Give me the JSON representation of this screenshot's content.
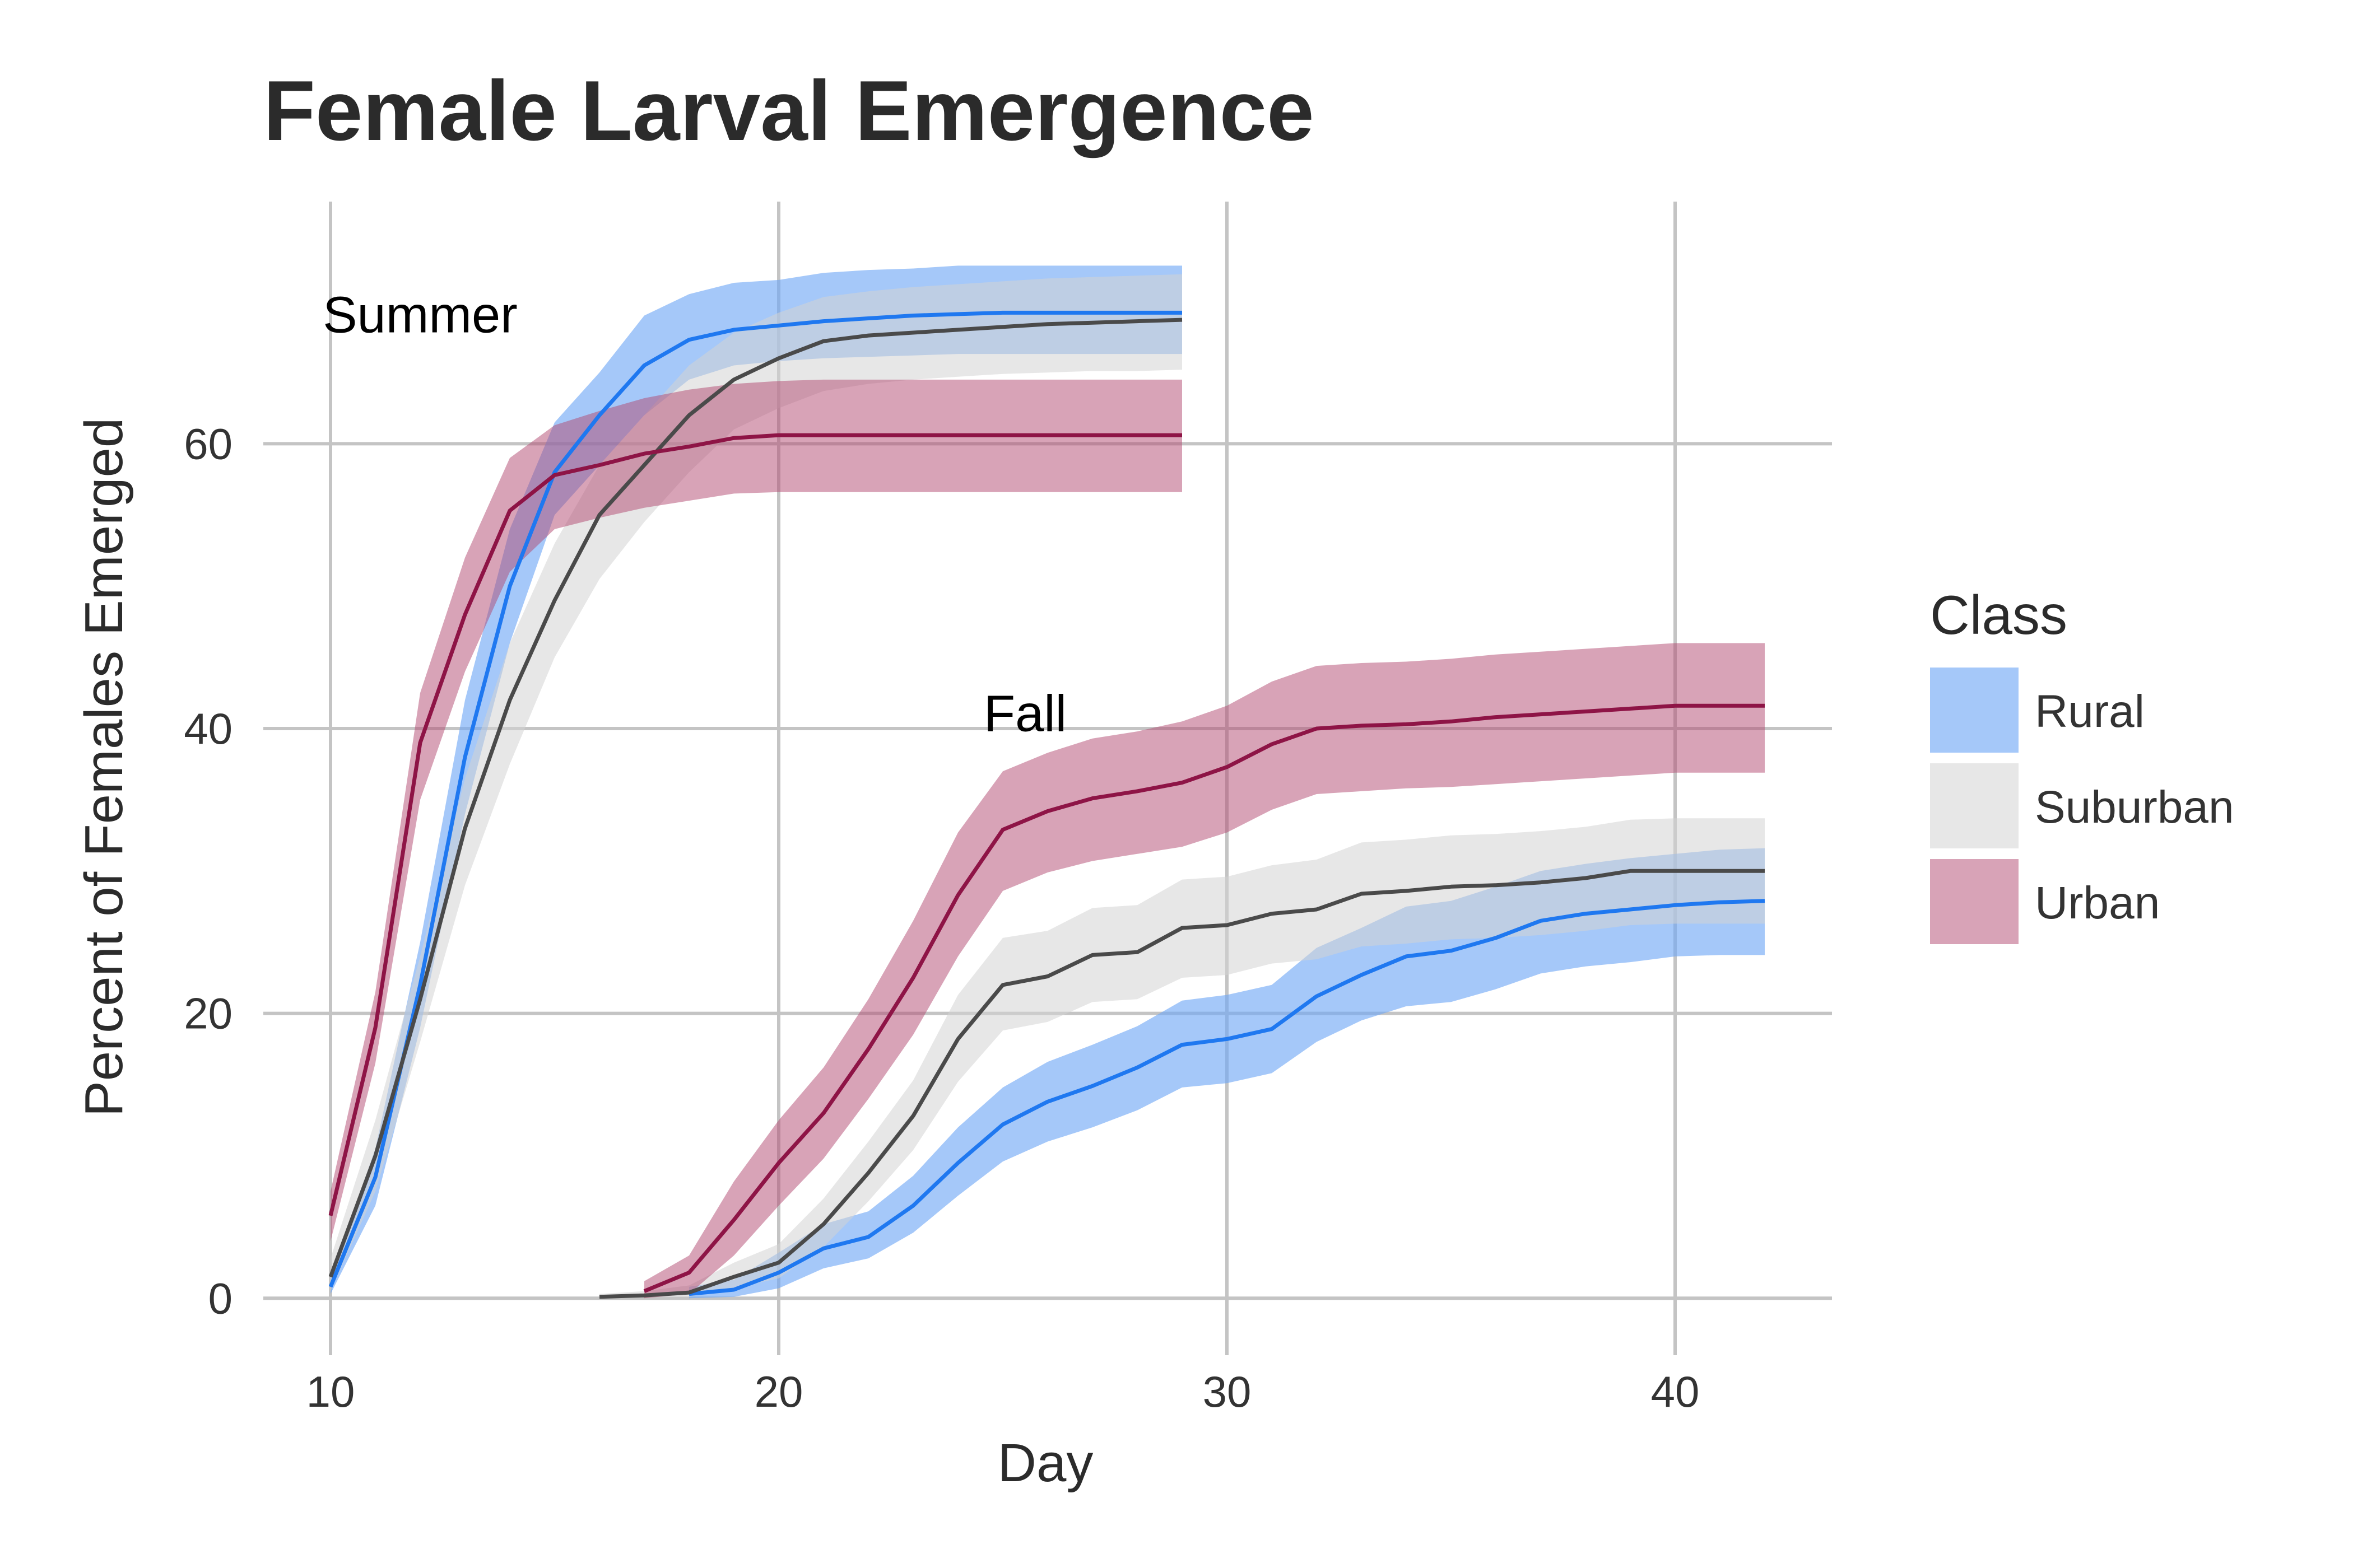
{
  "chart_data": {
    "type": "area",
    "title": "Female Larval Emergence",
    "xlabel": "Day",
    "ylabel": "Percent of Females Emerged",
    "xlim": [
      8.5,
      43.5
    ],
    "ylim": [
      -4,
      77
    ],
    "xticks": [
      10,
      20,
      30,
      40
    ],
    "yticks": [
      0,
      20,
      40,
      60
    ],
    "grid": true,
    "legend": {
      "title": "Class",
      "placement": "right"
    },
    "annotations": [
      {
        "text": "Summer",
        "x": 12,
        "y": 69
      },
      {
        "text": "Fall",
        "x": 25.5,
        "y": 41
      }
    ],
    "series": [
      {
        "name": "Rural",
        "season": "Summer",
        "line_color": "#1f78f0",
        "band_color": "#6ea6f5",
        "x": [
          10,
          11,
          12,
          13,
          14,
          15,
          16,
          17,
          18,
          19,
          20,
          21,
          22,
          23,
          24,
          25,
          26,
          27,
          28,
          29
        ],
        "y": [
          0.8,
          8.5,
          22,
          38,
          50,
          58,
          62,
          65.5,
          67.3,
          68,
          68.3,
          68.6,
          68.8,
          69,
          69.1,
          69.2,
          69.2,
          69.2,
          69.2,
          69.2
        ],
        "lower": [
          0.3,
          6.5,
          19,
          34,
          46,
          55,
          58.5,
          62,
          64.5,
          65.5,
          65.8,
          66,
          66.1,
          66.2,
          66.3,
          66.3,
          66.3,
          66.3,
          66.3,
          66.3
        ],
        "upper": [
          1.5,
          10.5,
          25,
          42,
          54,
          61.5,
          65,
          69,
          70.5,
          71.3,
          71.5,
          72,
          72.2,
          72.3,
          72.5,
          72.5,
          72.5,
          72.5,
          72.5,
          72.5
        ]
      },
      {
        "name": "Suburban",
        "season": "Summer",
        "line_color": "#4a4a4a",
        "band_color": "#d3d3d3",
        "x": [
          10,
          11,
          12,
          13,
          14,
          15,
          16,
          17,
          18,
          19,
          20,
          21,
          22,
          23,
          24,
          25,
          26,
          27,
          28,
          29
        ],
        "y": [
          1.5,
          10,
          21,
          33,
          42,
          49,
          55,
          58.5,
          62,
          64.5,
          66,
          67.2,
          67.6,
          67.8,
          68,
          68.2,
          68.4,
          68.5,
          68.6,
          68.7
        ],
        "lower": [
          0.5,
          7.5,
          18,
          29,
          37.5,
          45,
          50.5,
          54.5,
          58,
          61,
          62.5,
          63.7,
          64.2,
          64.5,
          64.7,
          64.9,
          65,
          65.1,
          65.1,
          65.2
        ],
        "upper": [
          2.8,
          12.5,
          24,
          36.5,
          46,
          53,
          58.5,
          62,
          65.5,
          67.8,
          69.2,
          70.3,
          70.7,
          71,
          71.2,
          71.4,
          71.6,
          71.7,
          71.8,
          71.9
        ]
      },
      {
        "name": "Urban",
        "season": "Summer",
        "line_color": "#8e1446",
        "band_color": "#b2486f",
        "x": [
          10,
          11,
          12,
          13,
          14,
          15,
          16,
          17,
          18,
          19,
          20,
          21,
          22,
          23,
          24,
          25,
          26,
          27,
          28,
          29
        ],
        "y": [
          5.8,
          19,
          39,
          48,
          55.3,
          57.8,
          58.5,
          59.3,
          59.8,
          60.4,
          60.6,
          60.6,
          60.6,
          60.6,
          60.6,
          60.6,
          60.6,
          60.6,
          60.6,
          60.6
        ],
        "lower": [
          4,
          16.5,
          35,
          44,
          51,
          54,
          54.8,
          55.5,
          56,
          56.5,
          56.6,
          56.6,
          56.6,
          56.6,
          56.6,
          56.6,
          56.6,
          56.6,
          56.6,
          56.6
        ],
        "upper": [
          7.5,
          21.5,
          42.5,
          52,
          59,
          61.3,
          62.3,
          63.2,
          63.8,
          64.2,
          64.4,
          64.5,
          64.5,
          64.5,
          64.5,
          64.5,
          64.5,
          64.5,
          64.5,
          64.5
        ]
      },
      {
        "name": "Rural",
        "season": "Fall",
        "line_color": "#1f78f0",
        "band_color": "#6ea6f5",
        "x": [
          18,
          19,
          20,
          21,
          22,
          23,
          24,
          25,
          26,
          27,
          28,
          29,
          30,
          31,
          32,
          33,
          34,
          35,
          36,
          37,
          38,
          39,
          40,
          41,
          42
        ],
        "y": [
          0.3,
          0.6,
          1.8,
          3.5,
          4.3,
          6.5,
          9.5,
          12.2,
          13.8,
          14.9,
          16.2,
          17.8,
          18.2,
          18.9,
          21.2,
          22.7,
          24,
          24.4,
          25.3,
          26.5,
          27,
          27.3,
          27.6,
          27.8,
          27.9
        ],
        "lower": [
          0,
          0.1,
          0.7,
          2.1,
          2.8,
          4.6,
          7.2,
          9.6,
          11,
          12,
          13.2,
          14.8,
          15.1,
          15.8,
          18,
          19.5,
          20.5,
          20.8,
          21.7,
          22.8,
          23.3,
          23.6,
          24,
          24.1,
          24.1
        ],
        "upper": [
          0.8,
          1.3,
          3.2,
          5.2,
          6.1,
          8.6,
          12,
          14.8,
          16.6,
          17.8,
          19.1,
          20.9,
          21.3,
          22,
          24.6,
          26,
          27.5,
          27.9,
          28.9,
          30,
          30.5,
          30.9,
          31.2,
          31.5,
          31.6
        ]
      },
      {
        "name": "Suburban",
        "season": "Fall",
        "line_color": "#4a4a4a",
        "band_color": "#d3d3d3",
        "x": [
          16,
          17,
          18,
          19,
          20,
          21,
          22,
          23,
          24,
          25,
          26,
          27,
          28,
          29,
          30,
          31,
          32,
          33,
          34,
          35,
          36,
          37,
          38,
          39,
          40,
          41,
          42
        ],
        "y": [
          0.1,
          0.2,
          0.4,
          1.5,
          2.5,
          5.2,
          8.8,
          12.8,
          18.2,
          22,
          22.6,
          24.1,
          24.3,
          26,
          26.2,
          27,
          27.3,
          28.4,
          28.6,
          28.9,
          29,
          29.2,
          29.5,
          30,
          30,
          30,
          30
        ],
        "lower": [
          0,
          0.05,
          0.1,
          0.7,
          1.4,
          3.6,
          6.8,
          10.4,
          15.2,
          18.8,
          19.4,
          20.8,
          21,
          22.5,
          22.7,
          23.5,
          23.8,
          24.7,
          24.9,
          25.2,
          25.3,
          25.5,
          25.8,
          26.2,
          26.3,
          26.3,
          26.3
        ],
        "upper": [
          0.3,
          0.5,
          0.9,
          2.5,
          3.8,
          7,
          11,
          15.3,
          21.3,
          25.3,
          25.8,
          27.4,
          27.6,
          29.4,
          29.6,
          30.4,
          30.8,
          32,
          32.2,
          32.5,
          32.6,
          32.8,
          33.1,
          33.6,
          33.7,
          33.7,
          33.7
        ]
      },
      {
        "name": "Urban",
        "season": "Fall",
        "line_color": "#8e1446",
        "band_color": "#b2486f",
        "x": [
          17,
          18,
          19,
          20,
          21,
          22,
          23,
          24,
          25,
          26,
          27,
          28,
          29,
          30,
          31,
          32,
          33,
          34,
          35,
          36,
          37,
          38,
          39,
          40,
          41,
          42
        ],
        "y": [
          0.5,
          1.8,
          5.5,
          9.5,
          13,
          17.5,
          22.5,
          28.3,
          32.9,
          34.2,
          35.1,
          35.6,
          36.2,
          37.3,
          38.9,
          40,
          40.2,
          40.3,
          40.5,
          40.8,
          41,
          41.2,
          41.4,
          41.6,
          41.6,
          41.6
        ],
        "lower": [
          0,
          0.3,
          3,
          6.5,
          9.8,
          14,
          18.5,
          24,
          28.6,
          29.9,
          30.7,
          31.2,
          31.7,
          32.7,
          34.3,
          35.4,
          35.6,
          35.8,
          35.9,
          36.1,
          36.3,
          36.5,
          36.7,
          36.9,
          36.9,
          36.9
        ],
        "upper": [
          1.2,
          3,
          8.2,
          12.5,
          16.2,
          21,
          26.5,
          32.7,
          37,
          38.3,
          39.3,
          39.8,
          40.5,
          41.6,
          43.3,
          44.4,
          44.6,
          44.7,
          44.9,
          45.2,
          45.4,
          45.6,
          45.8,
          46,
          46,
          46
        ]
      }
    ]
  },
  "legend_items": [
    {
      "label": "Rural",
      "color": "#6ea6f5"
    },
    {
      "label": "Suburban",
      "color": "#d3d3d3"
    },
    {
      "label": "Urban",
      "color": "#b2486f"
    }
  ]
}
